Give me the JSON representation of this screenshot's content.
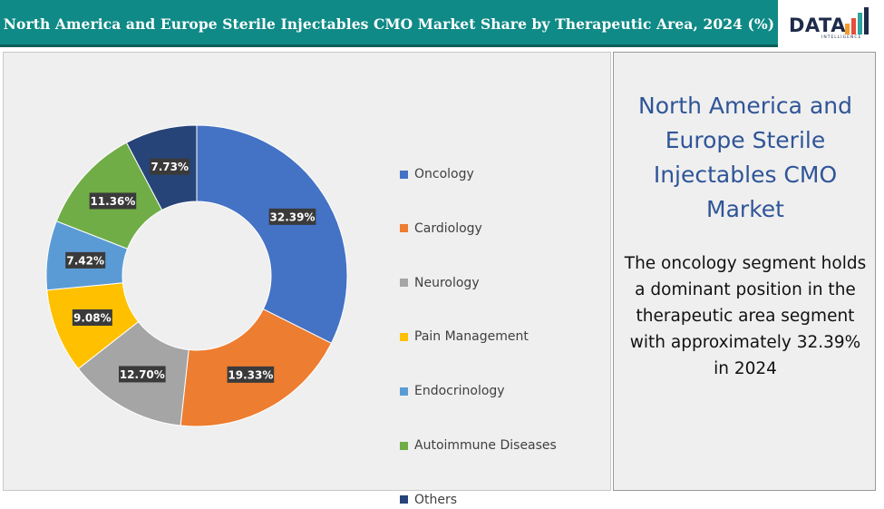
{
  "header": {
    "title": "North America and Europe Sterile Injectables CMO Market Share by Therapeutic Area, 2024 (%)"
  },
  "logo": {
    "word": "DATA",
    "sub": "INTELLIGENCE",
    "bar_colors": [
      "#f39c2b",
      "#e74c3c",
      "#2fa4a0",
      "#1e2b4a"
    ]
  },
  "side_panel": {
    "heading": "North America and Europe Sterile Injectables CMO Market",
    "body": "The oncology segment holds a dominant position in the therapeutic area segment with approximately 32.39% in 2024"
  },
  "chart_data": {
    "type": "pie",
    "variant": "donut",
    "legend_position": "right",
    "categories": [
      "Oncology",
      "Cardiology",
      "Neurology",
      "Pain Management",
      "Endocrinology",
      "Autoimmune Diseases",
      "Others"
    ],
    "values": [
      32.39,
      19.33,
      12.7,
      9.08,
      7.42,
      11.36,
      7.73
    ],
    "labels": [
      "32.39%",
      "19.33%",
      "12.70%",
      "9.08%",
      "7.42%",
      "11.36%",
      "7.73%"
    ],
    "colors": [
      "#4472c4",
      "#ed7d31",
      "#a5a5a5",
      "#ffc000",
      "#5b9bd5",
      "#70ad47",
      "#264478"
    ]
  }
}
